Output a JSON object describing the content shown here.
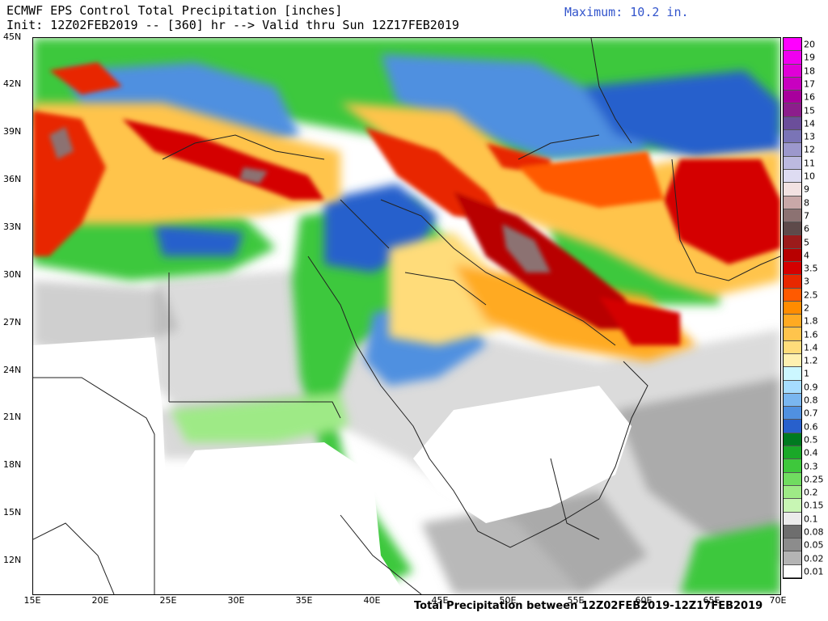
{
  "header": {
    "title_line1": "ECMWF EPS Control Total Precipitation [inches]",
    "title_line2": "Init: 12Z02FEB2019 -- [360] hr --> Valid thru Sun 12Z17FEB2019",
    "maximum": "Maximum: 10.2 in."
  },
  "footer": {
    "text": "Total Precipitation between 12Z02FEB2019-12Z17FEB2019"
  },
  "axes": {
    "lat_labels": [
      "45N",
      "42N",
      "39N",
      "36N",
      "33N",
      "30N",
      "27N",
      "24N",
      "21N",
      "18N",
      "15N",
      "12N"
    ],
    "lon_labels": [
      "15E",
      "20E",
      "25E",
      "30E",
      "35E",
      "40E",
      "45E",
      "50E",
      "55E",
      "60E",
      "65E",
      "70E"
    ]
  },
  "legend": {
    "labels": [
      "20",
      "19",
      "18",
      "17",
      "16",
      "15",
      "14",
      "13",
      "12",
      "11",
      "10",
      "9",
      "8",
      "7",
      "6",
      "5",
      "4",
      "3.5",
      "3",
      "2.5",
      "2",
      "1.8",
      "1.6",
      "1.4",
      "1.2",
      "1",
      "0.9",
      "0.8",
      "0.7",
      "0.6",
      "0.5",
      "0.4",
      "0.3",
      "0.25",
      "0.2",
      "0.15",
      "0.1",
      "0.08",
      "0.05",
      "0.02",
      "0.01"
    ],
    "colors": [
      "#ff00ff",
      "#f000f0",
      "#e000d8",
      "#c800c0",
      "#a8009c",
      "#8c1e8c",
      "#6b4e9a",
      "#7a74b6",
      "#9c98cc",
      "#bcbae0",
      "#dedcf2",
      "#f2e2e2",
      "#c8a8a8",
      "#8c7272",
      "#5e4a4a",
      "#9b1b1b",
      "#b80000",
      "#d40000",
      "#e82800",
      "#ff5a00",
      "#ff8c00",
      "#ffaa22",
      "#ffc44c",
      "#ffdc7a",
      "#fff0b0",
      "#ccf7ff",
      "#a6dcff",
      "#7ab6f0",
      "#5090e0",
      "#2860cc",
      "#007a20",
      "#1aa828",
      "#3ec83c",
      "#70dc60",
      "#9eea86",
      "#c8f6b4",
      "#ebebeb",
      "#6e6e6e",
      "#8c8c8c",
      "#b4b4b4",
      "#ffffff"
    ]
  }
}
